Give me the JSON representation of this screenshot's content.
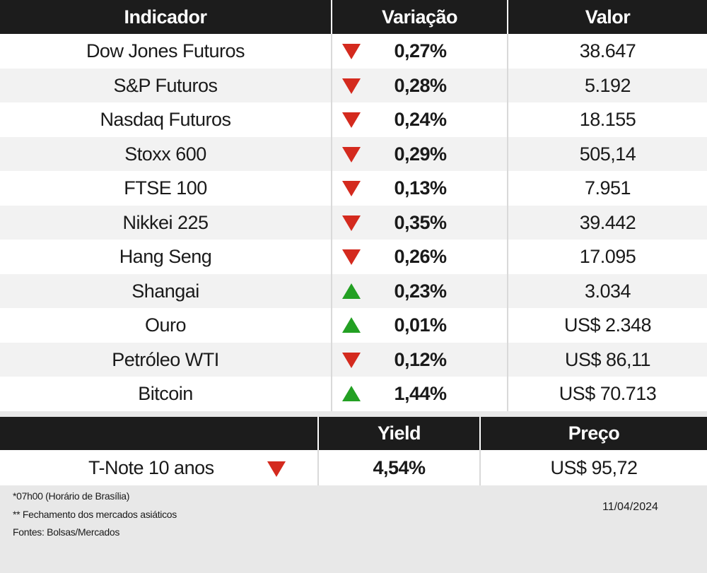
{
  "table": {
    "headers": {
      "indicator": "Indicador",
      "change": "Variação",
      "value": "Valor"
    },
    "rows": [
      {
        "name": "Dow Jones Futuros",
        "direction": "down",
        "change": "0,27%",
        "value": "38.647"
      },
      {
        "name": "S&P Futuros",
        "direction": "down",
        "change": "0,28%",
        "value": "5.192"
      },
      {
        "name": "Nasdaq Futuros",
        "direction": "down",
        "change": "0,24%",
        "value": "18.155"
      },
      {
        "name": "Stoxx 600",
        "direction": "down",
        "change": "0,29%",
        "value": "505,14"
      },
      {
        "name": "FTSE 100",
        "direction": "down",
        "change": "0,13%",
        "value": "7.951"
      },
      {
        "name": "Nikkei 225",
        "direction": "down",
        "change": "0,35%",
        "value": "39.442"
      },
      {
        "name": "Hang Seng",
        "direction": "down",
        "change": "0,26%",
        "value": "17.095"
      },
      {
        "name": "Shangai",
        "direction": "up",
        "change": "0,23%",
        "value": "3.034"
      },
      {
        "name": "Ouro",
        "direction": "up",
        "change": "0,01%",
        "value": "US$ 2.348"
      },
      {
        "name": "Petróleo WTI",
        "direction": "down",
        "change": "0,12%",
        "value": "US$ 86,11"
      },
      {
        "name": "Bitcoin",
        "direction": "up",
        "change": "1,44%",
        "value": "US$ 70.713"
      }
    ]
  },
  "treasury": {
    "headers": {
      "yield": "Yield",
      "price": "Preço"
    },
    "row": {
      "name": "T-Note 10 anos",
      "direction": "down",
      "yield": "4,54%",
      "price": "US$ 95,72"
    }
  },
  "footer": {
    "notes": [
      "*07h00 (Horário de Brasília)",
      "** Fechamento dos mercados asiáticos",
      "Fontes: Bolsas/Mercados"
    ],
    "date": "11/04/2024"
  },
  "colors": {
    "header_bg": "#1c1c1c",
    "down": "#d42a1e",
    "up": "#23a023"
  }
}
